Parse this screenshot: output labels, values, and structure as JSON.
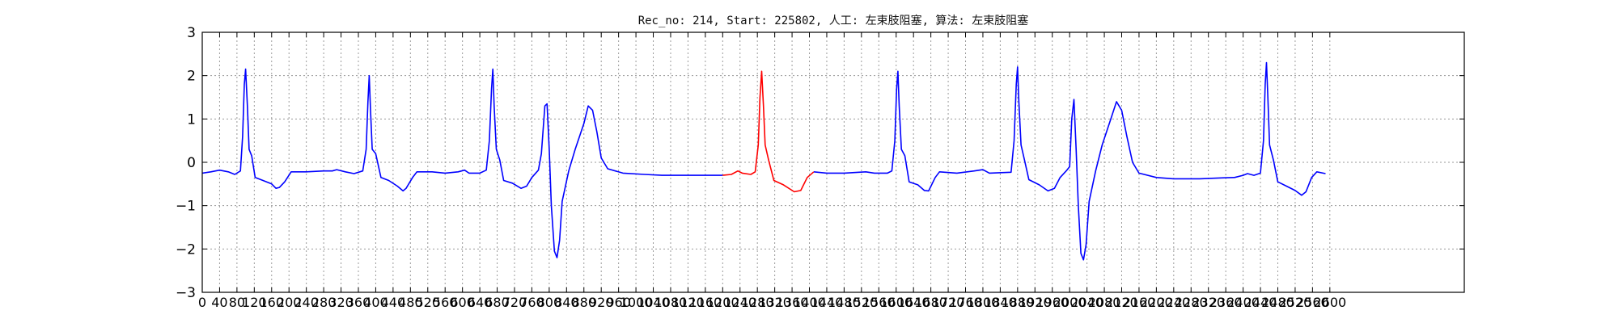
{
  "chart_data": {
    "type": "line",
    "title": "Rec_no: 214, Start: 225802, 人工: 左束肢阻塞, 算法: 左束肢阻塞",
    "xlabel": "",
    "ylabel": "",
    "xlim": [
      0,
      2910
    ],
    "ylim": [
      -3,
      3
    ],
    "yticks": [
      3,
      2,
      1,
      0,
      -1,
      -2,
      -3
    ],
    "ytick_labels": [
      "3",
      "2",
      "1",
      "0",
      "−1",
      "−2",
      "−3"
    ],
    "xticks": [
      0,
      40,
      80,
      120,
      160,
      200,
      240,
      280,
      320,
      360,
      400,
      440,
      480,
      520,
      560,
      600,
      640,
      680,
      720,
      760,
      800,
      840,
      880,
      920,
      960,
      1000,
      1040,
      1080,
      1120,
      1160,
      1200,
      1240,
      1280,
      1320,
      1360,
      1400,
      1440,
      1480,
      1520,
      1560,
      1600,
      1640,
      1680,
      1720,
      1760,
      1800,
      1840,
      1880,
      1920,
      1960,
      2000,
      2040,
      2080,
      2120,
      2160,
      2200,
      2240,
      2280,
      2320,
      2360,
      2400,
      2440,
      2480,
      2520,
      2560,
      2600
    ],
    "grid": true,
    "series": [
      {
        "color": "#0000ff",
        "points": [
          [
            0,
            -0.25
          ],
          [
            20,
            -0.22
          ],
          [
            40,
            -0.18
          ],
          [
            60,
            -0.22
          ],
          [
            75,
            -0.28
          ],
          [
            88,
            -0.2
          ],
          [
            93,
            0.6
          ],
          [
            97,
            1.8
          ],
          [
            100,
            2.15
          ],
          [
            104,
            1.3
          ],
          [
            108,
            0.3
          ],
          [
            114,
            0.15
          ],
          [
            122,
            -0.35
          ],
          [
            140,
            -0.42
          ],
          [
            160,
            -0.5
          ],
          [
            170,
            -0.6
          ],
          [
            178,
            -0.58
          ],
          [
            190,
            -0.45
          ],
          [
            205,
            -0.22
          ],
          [
            240,
            -0.22
          ],
          [
            280,
            -0.2
          ],
          [
            300,
            -0.2
          ],
          [
            310,
            -0.17
          ],
          [
            330,
            -0.22
          ],
          [
            350,
            -0.26
          ],
          [
            370,
            -0.2
          ],
          [
            378,
            0.3
          ],
          [
            382,
            1.4
          ],
          [
            385,
            2.0
          ],
          [
            388,
            1.2
          ],
          [
            392,
            0.3
          ],
          [
            400,
            0.2
          ],
          [
            412,
            -0.35
          ],
          [
            430,
            -0.42
          ],
          [
            450,
            -0.55
          ],
          [
            463,
            -0.66
          ],
          [
            470,
            -0.6
          ],
          [
            485,
            -0.35
          ],
          [
            495,
            -0.22
          ],
          [
            530,
            -0.22
          ],
          [
            560,
            -0.25
          ],
          [
            590,
            -0.22
          ],
          [
            605,
            -0.18
          ],
          [
            615,
            -0.25
          ],
          [
            640,
            -0.25
          ],
          [
            655,
            -0.18
          ],
          [
            662,
            0.5
          ],
          [
            667,
            1.7
          ],
          [
            670,
            2.15
          ],
          [
            673,
            1.3
          ],
          [
            678,
            0.3
          ],
          [
            686,
            0.05
          ],
          [
            695,
            -0.42
          ],
          [
            715,
            -0.48
          ],
          [
            735,
            -0.6
          ],
          [
            748,
            -0.55
          ],
          [
            760,
            -0.35
          ],
          [
            775,
            -0.18
          ],
          [
            782,
            0.2
          ],
          [
            790,
            1.3
          ],
          [
            795,
            1.35
          ],
          [
            800,
            0.3
          ],
          [
            805,
            -1.0
          ],
          [
            812,
            -2.05
          ],
          [
            818,
            -2.2
          ],
          [
            824,
            -1.8
          ],
          [
            830,
            -0.9
          ],
          [
            845,
            -0.2
          ],
          [
            860,
            0.3
          ],
          [
            880,
            0.9
          ],
          [
            890,
            1.3
          ],
          [
            900,
            1.2
          ],
          [
            910,
            0.7
          ],
          [
            920,
            0.1
          ],
          [
            935,
            -0.15
          ],
          [
            970,
            -0.25
          ],
          [
            1020,
            -0.28
          ],
          [
            1060,
            -0.3
          ],
          [
            1100,
            -0.3
          ],
          [
            1160,
            -0.3
          ],
          [
            1200,
            -0.3
          ]
        ]
      },
      {
        "color": "#ff0000",
        "points": [
          [
            1200,
            -0.3
          ],
          [
            1220,
            -0.28
          ],
          [
            1235,
            -0.2
          ],
          [
            1245,
            -0.25
          ],
          [
            1265,
            -0.28
          ],
          [
            1275,
            -0.22
          ],
          [
            1282,
            0.4
          ],
          [
            1286,
            1.5
          ],
          [
            1290,
            2.1
          ],
          [
            1294,
            1.3
          ],
          [
            1298,
            0.4
          ],
          [
            1306,
            0.05
          ],
          [
            1318,
            -0.42
          ],
          [
            1340,
            -0.52
          ],
          [
            1365,
            -0.68
          ],
          [
            1380,
            -0.65
          ],
          [
            1395,
            -0.35
          ],
          [
            1410,
            -0.22
          ]
        ]
      },
      {
        "color": "#0000ff",
        "points": [
          [
            1410,
            -0.22
          ],
          [
            1440,
            -0.25
          ],
          [
            1480,
            -0.25
          ],
          [
            1530,
            -0.22
          ],
          [
            1550,
            -0.25
          ],
          [
            1580,
            -0.25
          ],
          [
            1590,
            -0.2
          ],
          [
            1597,
            0.5
          ],
          [
            1601,
            1.7
          ],
          [
            1604,
            2.1
          ],
          [
            1607,
            1.3
          ],
          [
            1612,
            0.3
          ],
          [
            1620,
            0.15
          ],
          [
            1630,
            -0.45
          ],
          [
            1650,
            -0.52
          ],
          [
            1665,
            -0.65
          ],
          [
            1675,
            -0.66
          ],
          [
            1690,
            -0.35
          ],
          [
            1700,
            -0.22
          ],
          [
            1740,
            -0.25
          ],
          [
            1780,
            -0.2
          ],
          [
            1800,
            -0.17
          ],
          [
            1815,
            -0.25
          ],
          [
            1865,
            -0.23
          ],
          [
            1872,
            0.5
          ],
          [
            1877,
            1.8
          ],
          [
            1880,
            2.2
          ],
          [
            1883,
            1.4
          ],
          [
            1888,
            0.4
          ],
          [
            1896,
            0.05
          ],
          [
            1906,
            -0.4
          ],
          [
            1930,
            -0.52
          ],
          [
            1950,
            -0.66
          ],
          [
            1965,
            -0.6
          ],
          [
            1978,
            -0.35
          ],
          [
            1992,
            -0.2
          ],
          [
            2000,
            -0.1
          ],
          [
            2005,
            1.0
          ],
          [
            2010,
            1.45
          ],
          [
            2015,
            0.3
          ],
          [
            2020,
            -1.0
          ],
          [
            2026,
            -2.1
          ],
          [
            2032,
            -2.25
          ],
          [
            2038,
            -1.9
          ],
          [
            2045,
            -0.9
          ],
          [
            2060,
            -0.2
          ],
          [
            2075,
            0.4
          ],
          [
            2095,
            1.0
          ],
          [
            2108,
            1.4
          ],
          [
            2120,
            1.2
          ],
          [
            2132,
            0.6
          ],
          [
            2145,
            0.0
          ],
          [
            2160,
            -0.25
          ],
          [
            2200,
            -0.35
          ],
          [
            2240,
            -0.38
          ],
          [
            2300,
            -0.38
          ],
          [
            2350,
            -0.36
          ],
          [
            2380,
            -0.35
          ],
          [
            2400,
            -0.3
          ],
          [
            2410,
            -0.26
          ],
          [
            2425,
            -0.3
          ],
          [
            2440,
            -0.25
          ],
          [
            2447,
            0.5
          ],
          [
            2451,
            1.8
          ],
          [
            2454,
            2.3
          ],
          [
            2457,
            1.5
          ],
          [
            2461,
            0.4
          ],
          [
            2470,
            0.05
          ],
          [
            2480,
            -0.45
          ],
          [
            2500,
            -0.55
          ],
          [
            2520,
            -0.65
          ],
          [
            2535,
            -0.76
          ],
          [
            2545,
            -0.68
          ],
          [
            2558,
            -0.35
          ],
          [
            2570,
            -0.22
          ],
          [
            2590,
            -0.26
          ]
        ]
      }
    ]
  }
}
